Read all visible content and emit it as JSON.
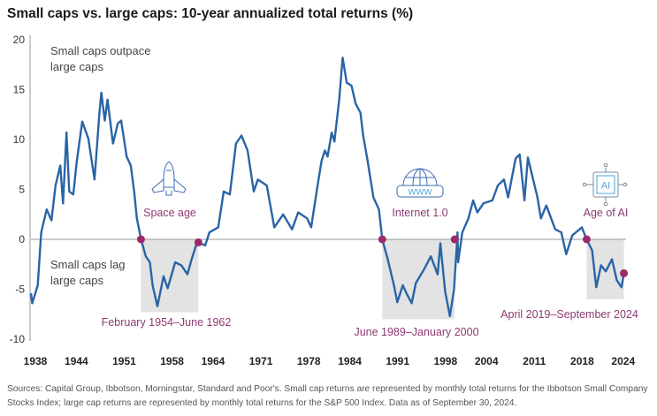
{
  "title": "Small caps vs. large caps: 10-year annualized total returns (%)",
  "footer": "Sources: Capital Group, Ibbotson, Morningstar, Standard and Poor's. Small cap returns are represented by monthly total returns for the Ibbotson Small Company Stocks Index; large cap returns are represented by monthly total returns for the S&P 500 Index. Data as of September 30, 2024.",
  "colors": {
    "line": "#2a64a6",
    "marker": "#9b2a6b",
    "annotation": "#8e3a73",
    "shade": "#e3e3e3",
    "zero_line": "#999999"
  },
  "chart_data": {
    "type": "line",
    "title": "Small caps vs. large caps: 10-year annualized total returns (%)",
    "xlabel": "",
    "ylabel": "",
    "xlim": [
      1938,
      2024.75
    ],
    "ylim": [
      -10,
      20
    ],
    "yticks": [
      20,
      15,
      10,
      5,
      0,
      -5,
      -10
    ],
    "xticks": [
      "1938",
      "1944",
      "1951",
      "1958",
      "1964",
      "1971",
      "1978",
      "1984",
      "1991",
      "1998",
      "2004",
      "2011",
      "2018",
      "2024"
    ],
    "grid": false,
    "series": [
      {
        "x": [
          1938.0,
          1938.2,
          1939.0,
          1939.5,
          1940.3,
          1941.0,
          1941.6,
          1942.3,
          1942.7,
          1943.2,
          1943.6,
          1944.2,
          1944.7,
          1945.5,
          1946.4,
          1947.3,
          1948.0,
          1948.3,
          1948.8,
          1949.2,
          1950.0,
          1950.7,
          1951.2,
          1952.0,
          1952.6,
          1953.1,
          1953.5,
          1954.1,
          1954.8,
          1955.4,
          1955.8,
          1956.5,
          1957.4,
          1958.0,
          1959.1,
          1960.0,
          1960.9,
          1961.5,
          1962.3,
          1963.5,
          1964.1,
          1965.4,
          1966.2,
          1967.1,
          1968.0,
          1968.8,
          1969.7,
          1970.6,
          1971.2,
          1972.5,
          1973.6,
          1974.9,
          1976.2,
          1977.1,
          1978.4,
          1979.0,
          1979.8,
          1980.5,
          1981.0,
          1981.4,
          1982.0,
          1982.4,
          1983.1,
          1983.6,
          1984.2,
          1984.9,
          1985.5,
          1986.2,
          1986.6,
          1987.2,
          1988.1,
          1988.9,
          1989.4,
          1990.2,
          1991.1,
          1991.6,
          1992.4,
          1993.0,
          1993.7,
          1994.3,
          1995.6,
          1996.5,
          1997.5,
          1997.9,
          1998.6,
          1999.3,
          1999.9,
          2000.4,
          2000.5,
          2001.1,
          2002.0,
          2002.7,
          2003.3,
          2004.2,
          2005.5,
          2006.3,
          2007.2,
          2007.8,
          2008.9,
          2009.5,
          2010.2,
          2010.7,
          2011.3,
          2012.1,
          2012.6,
          2013.4,
          2014.7,
          2015.6,
          2016.3,
          2017.2,
          2018.6,
          2019.3,
          2020.1,
          2020.7,
          2021.4,
          2022.1,
          2023.0,
          2023.7,
          2024.4,
          2024.75
        ],
        "y": [
          -5.4,
          -6.4,
          -4.6,
          0.7,
          3.0,
          1.9,
          5.4,
          7.4,
          3.6,
          10.7,
          4.8,
          4.5,
          7.8,
          11.8,
          10.1,
          6.0,
          12.5,
          14.7,
          11.9,
          14.0,
          9.6,
          11.6,
          11.9,
          8.3,
          7.4,
          4.8,
          2.1,
          0,
          -1.7,
          -2.3,
          -4.6,
          -6.7,
          -3.7,
          -4.9,
          -2.3,
          -2.6,
          -3.5,
          -2.0,
          -0.3,
          -0.6,
          0.7,
          1.2,
          4.8,
          4.5,
          9.6,
          10.4,
          8.9,
          4.8,
          6.0,
          5.4,
          1.2,
          2.5,
          1.0,
          2.7,
          2.1,
          1.2,
          4.8,
          7.8,
          8.9,
          8.3,
          10.7,
          9.8,
          14.0,
          18.2,
          15.7,
          15.4,
          13.6,
          12.7,
          10.4,
          8.1,
          4.2,
          3.0,
          0,
          -2.0,
          -4.6,
          -6.3,
          -4.6,
          -5.5,
          -6.4,
          -4.4,
          -2.9,
          -1.7,
          -3.5,
          -0.4,
          -5.2,
          -7.7,
          -5.0,
          0.7,
          -2.3,
          0.7,
          2.1,
          3.9,
          2.7,
          3.6,
          3.9,
          5.4,
          6.0,
          4.2,
          8.1,
          8.5,
          3.9,
          8.2,
          6.5,
          4.2,
          2.1,
          3.4,
          1.0,
          0.7,
          -1.5,
          0.4,
          1.2,
          0,
          -1.1,
          -4.8,
          -2.6,
          -3.2,
          -2.0,
          -4.1,
          -4.8,
          -3.4
        ]
      }
    ],
    "annotations": {
      "outpace": [
        "Small caps outpace",
        "large caps"
      ],
      "lag": [
        "Small caps lag",
        "large caps"
      ],
      "periods": [
        {
          "label": "Space age",
          "range_label": "February 1954–June 1962",
          "start": 1954.1,
          "end": 1962.5,
          "shade_min": -7.3,
          "icon": "rocket-icon",
          "end_value": -0.3
        },
        {
          "label": "Internet 1.0",
          "range_label": "June 1989–January 2000",
          "start": 1989.4,
          "end": 2000.0,
          "shade_min": -8.0,
          "icon": "globe-www-icon",
          "icon_text": "WWW",
          "end_value": 0
        },
        {
          "label": "Age of AI",
          "range_label": "April 2019–September 2024",
          "start": 2019.3,
          "end": 2024.75,
          "shade_min": -6.0,
          "icon": "ai-chip-icon",
          "icon_text": "AI",
          "end_value": -3.4
        }
      ]
    }
  }
}
